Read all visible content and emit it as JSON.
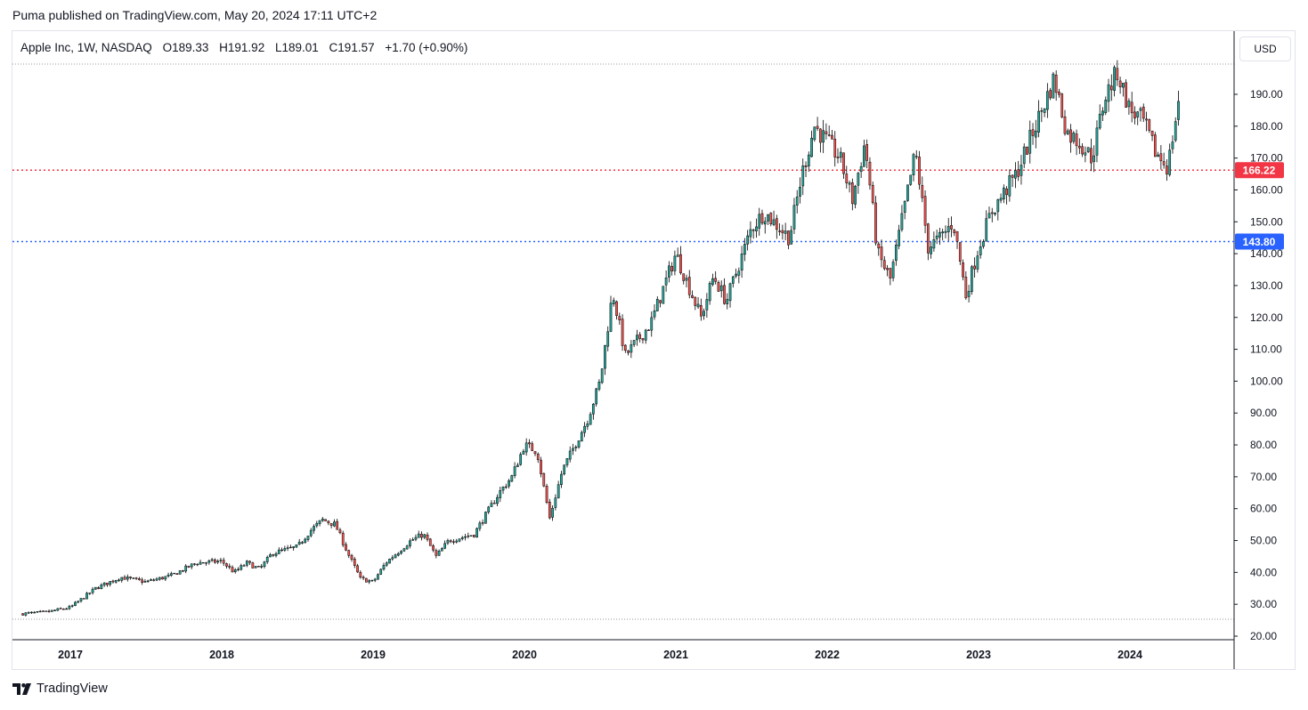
{
  "publish_line": "Puma published on TradingView.com, May 20, 2024 17:11 UTC+2",
  "legend": {
    "symbol": "Apple Inc, 1W, NASDAQ",
    "open_label": "O",
    "open": "189.33",
    "high_label": "H",
    "high": "191.92",
    "low_label": "L",
    "low": "189.01",
    "close_label": "C",
    "close": "191.57",
    "change": "+1.70 (+0.90%)"
  },
  "currency_button": "USD",
  "brand": "TradingView",
  "colors": {
    "up": "#26a69a",
    "down": "#ef5350",
    "candle_border": "#000000",
    "red_line": "#f23645",
    "blue_line": "#2962ff"
  },
  "chart_data": {
    "type": "candlestick",
    "interval": "1W",
    "y_ticks": [
      "20.00",
      "30.00",
      "40.00",
      "50.00",
      "60.00",
      "70.00",
      "80.00",
      "90.00",
      "100.00",
      "110.00",
      "120.00",
      "130.00",
      "140.00",
      "150.00",
      "160.00",
      "170.00",
      "180.00",
      "190.00"
    ],
    "ylim": [
      20,
      200
    ],
    "x_ticks": [
      "2017",
      "2018",
      "2019",
      "2020",
      "2021",
      "2022",
      "2023",
      "2024"
    ],
    "horizontal_lines": [
      {
        "value": 166.22,
        "label": "166.22",
        "color": "#f23645",
        "style": "dotted"
      },
      {
        "value": 143.8,
        "label": "143.80",
        "color": "#2962ff",
        "style": "dotted"
      }
    ],
    "price_path": [
      [
        "2016-09",
        27
      ],
      [
        "2016-11",
        27.5
      ],
      [
        "2017-01",
        29
      ],
      [
        "2017-03",
        35
      ],
      [
        "2017-05",
        38.5
      ],
      [
        "2017-07",
        37
      ],
      [
        "2017-09",
        39
      ],
      [
        "2017-11",
        43
      ],
      [
        "2018-01",
        43.5
      ],
      [
        "2018-02",
        40
      ],
      [
        "2018-03",
        43
      ],
      [
        "2018-04",
        41
      ],
      [
        "2018-05",
        46
      ],
      [
        "2018-07",
        48
      ],
      [
        "2018-08",
        53
      ],
      [
        "2018-09",
        56.5
      ],
      [
        "2018-10",
        55
      ],
      [
        "2018-11",
        46
      ],
      [
        "2018-12",
        38
      ],
      [
        "2019-01",
        37
      ],
      [
        "2019-02",
        43
      ],
      [
        "2019-04",
        50
      ],
      [
        "2019-05",
        52
      ],
      [
        "2019-06",
        45
      ],
      [
        "2019-07",
        50
      ],
      [
        "2019-09",
        52
      ],
      [
        "2019-11",
        65
      ],
      [
        "2019-12",
        70
      ],
      [
        "2020-01",
        80
      ],
      [
        "2020-02",
        78
      ],
      [
        "2020-03",
        57
      ],
      [
        "2020-04",
        72
      ],
      [
        "2020-06",
        88
      ],
      [
        "2020-07",
        100
      ],
      [
        "2020-08",
        128
      ],
      [
        "2020-09",
        108
      ],
      [
        "2020-11",
        118
      ],
      [
        "2021-01",
        140
      ],
      [
        "2021-03",
        120
      ],
      [
        "2021-04",
        133
      ],
      [
        "2021-05",
        125
      ],
      [
        "2021-07",
        148
      ],
      [
        "2021-08",
        153
      ],
      [
        "2021-10",
        145
      ],
      [
        "2021-11",
        165
      ],
      [
        "2021-12",
        180
      ],
      [
        "2022-02",
        170
      ],
      [
        "2022-03",
        157
      ],
      [
        "2022-04",
        175
      ],
      [
        "2022-05",
        140
      ],
      [
        "2022-06",
        132
      ],
      [
        "2022-08",
        172
      ],
      [
        "2022-09",
        142
      ],
      [
        "2022-10",
        145
      ],
      [
        "2022-11",
        150
      ],
      [
        "2022-12",
        127
      ],
      [
        "2023-01",
        142
      ],
      [
        "2023-02",
        153
      ],
      [
        "2023-04",
        165
      ],
      [
        "2023-06",
        185
      ],
      [
        "2023-07",
        195
      ],
      [
        "2023-08",
        178
      ],
      [
        "2023-09",
        175
      ],
      [
        "2023-10",
        170
      ],
      [
        "2023-11",
        189
      ],
      [
        "2023-12",
        197
      ],
      [
        "2024-01",
        185
      ],
      [
        "2024-02",
        182
      ],
      [
        "2024-03",
        172
      ],
      [
        "2024-04",
        167
      ],
      [
        "2024-05",
        191.57
      ]
    ]
  }
}
